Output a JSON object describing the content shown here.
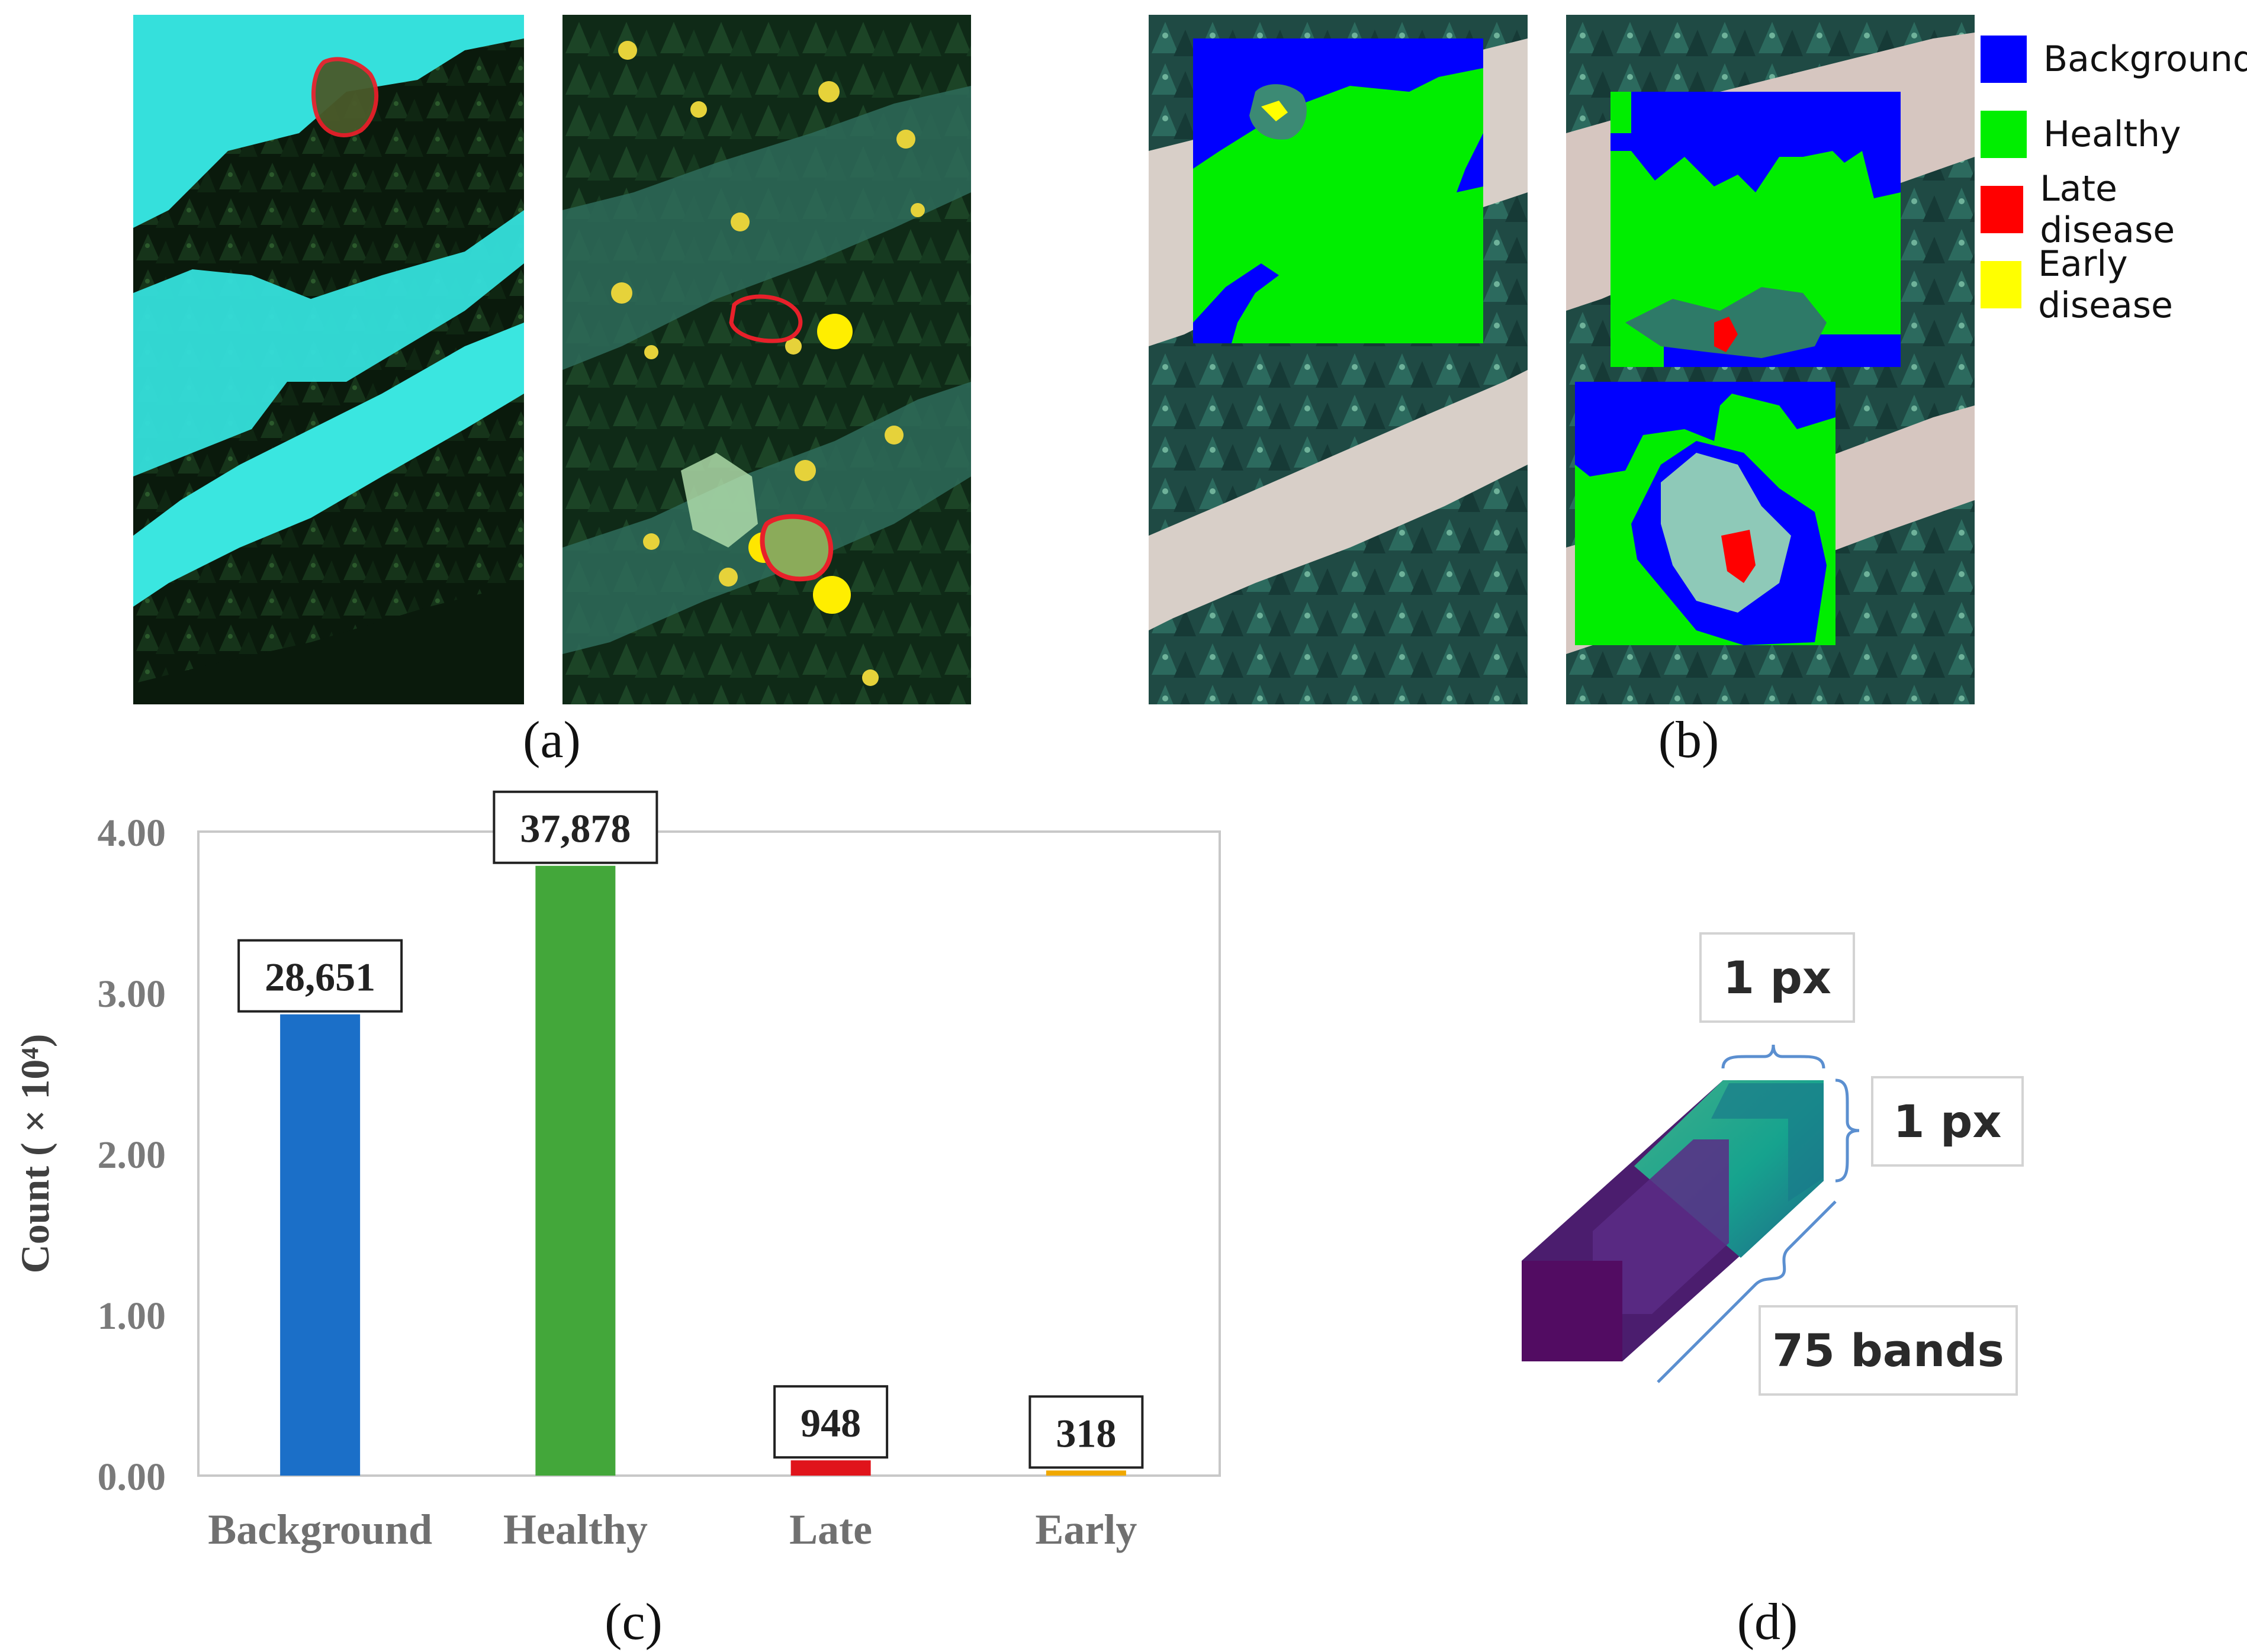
{
  "panel_labels": {
    "a": "(a)",
    "b": "(b)",
    "c": "(c)",
    "d": "(d)"
  },
  "legend": [
    {
      "label": "Background",
      "color": "#0000ff"
    },
    {
      "label": "Healthy",
      "color": "#00ee00"
    },
    {
      "label": "Late disease",
      "color": "#ff0000"
    },
    {
      "label": "Early disease",
      "color": "#ffff00"
    }
  ],
  "chart_data": {
    "type": "bar",
    "categories": [
      "Background",
      "Healthy",
      "Late",
      "Early"
    ],
    "values": [
      2.8651,
      3.7878,
      0.0948,
      0.0318
    ],
    "value_labels": [
      "28,651",
      "37,878",
      "948",
      "318"
    ],
    "bar_colors": [
      "#1b6fc8",
      "#43a73a",
      "#e0141b",
      "#f0a800"
    ],
    "ylabel": "Count ( × 10⁴)",
    "ylim": [
      0,
      4
    ],
    "yticks": [
      "0.00",
      "1.00",
      "2.00",
      "3.00",
      "4.00"
    ],
    "grid": false
  },
  "diagram": {
    "width_label": "1 px",
    "height_label": "1 px",
    "depth_label": "75 bands"
  }
}
